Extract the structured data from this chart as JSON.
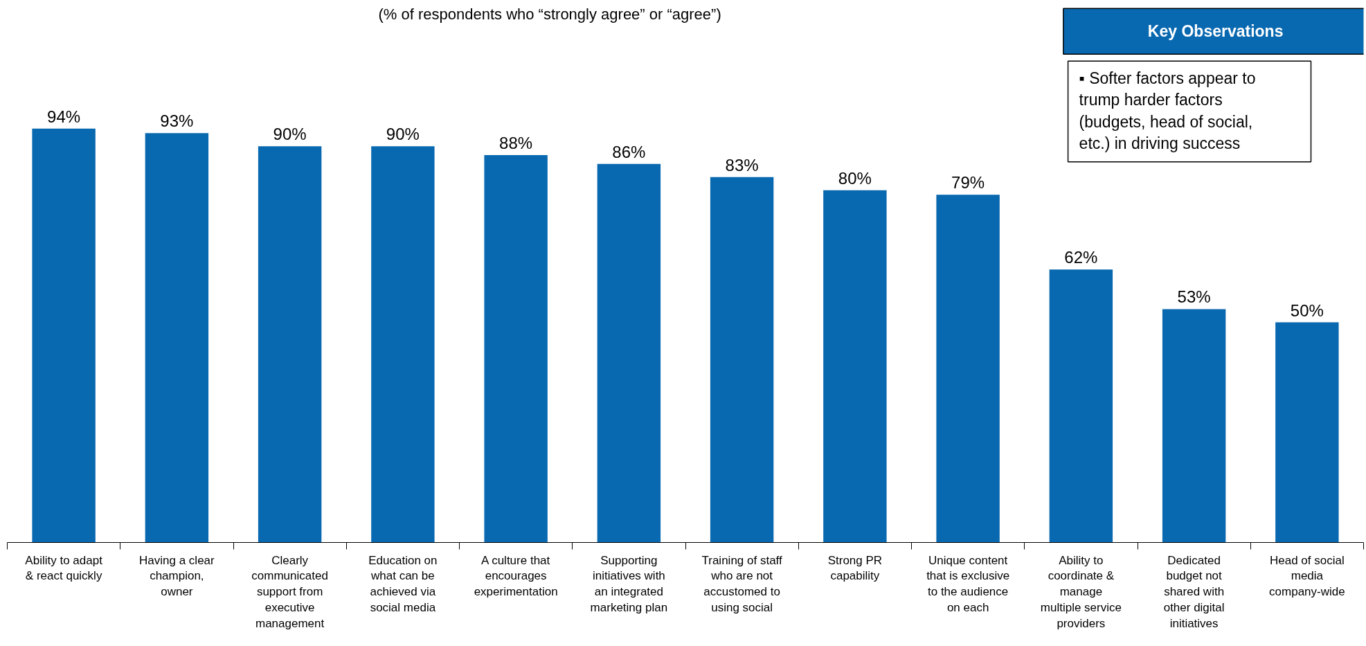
{
  "chart_data": {
    "type": "bar",
    "subtitle": "(% of respondents who “strongly agree” or “agree”)",
    "categories": [
      "Ability to adapt\n& react quickly",
      "Having a clear\nchampion,\nowner",
      "Clearly\ncommunicated\nsupport from\nexecutive\nmanagement",
      "Education on\nwhat can be\nachieved via\nsocial media",
      "A culture that\nencourages\nexperimentation",
      "Supporting\ninitiatives with\nan integrated\nmarketing plan",
      "Training of staff\nwho are not\naccustomed to\nusing social",
      "Strong PR\ncapability",
      "Unique content\nthat is exclusive\nto the audience\non each",
      "Ability to\ncoordinate &\nmanage\nmultiple service\nproviders",
      "Dedicated\nbudget not\nshared with\nother digital\ninitiatives",
      "Head of social\nmedia\ncompany-wide"
    ],
    "values": [
      94,
      93,
      90,
      90,
      88,
      86,
      83,
      80,
      79,
      62,
      53,
      50
    ],
    "value_labels": [
      "94%",
      "93%",
      "90%",
      "90%",
      "88%",
      "86%",
      "83%",
      "80%",
      "79%",
      "62%",
      "53%",
      "50%"
    ],
    "color": "#0868b0",
    "annotations": [
      "Key Observations",
      "▪ Softer factors appear to\ntrump harder factors\n(budgets, head of social,\netc.) in driving success"
    ],
    "grid": false
  }
}
